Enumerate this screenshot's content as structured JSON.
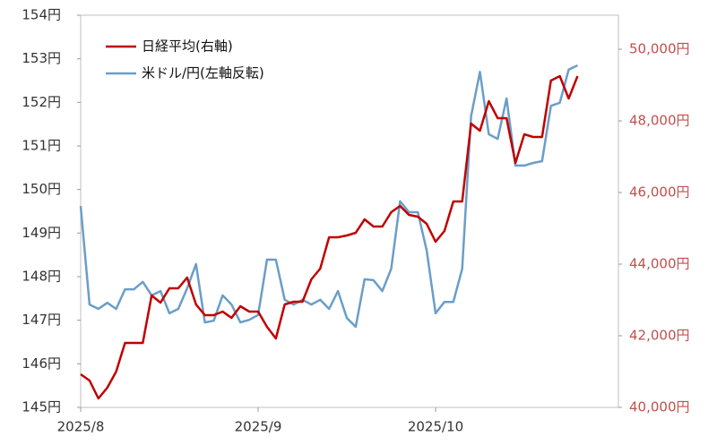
{
  "chart_data": {
    "type": "line",
    "categories": [
      "2025/8",
      null,
      null,
      null,
      null,
      null,
      null,
      null,
      null,
      null,
      null,
      null,
      null,
      null,
      null,
      null,
      null,
      null,
      null,
      null,
      "2025/9",
      null,
      null,
      null,
      null,
      null,
      null,
      null,
      null,
      null,
      null,
      null,
      null,
      null,
      null,
      null,
      null,
      null,
      null,
      null,
      "2025/10",
      null,
      null,
      null,
      null,
      null,
      null,
      null,
      null,
      null,
      null,
      null,
      null,
      null,
      null,
      null,
      null
    ],
    "ylim": [
      145,
      154
    ],
    "yticks": [
      {
        "value": 145,
        "label": "145円"
      },
      {
        "value": 146,
        "label": "146円"
      },
      {
        "value": 147,
        "label": "147円"
      },
      {
        "value": 148,
        "label": "148円"
      },
      {
        "value": 149,
        "label": "149円"
      },
      {
        "value": 150,
        "label": "150円"
      },
      {
        "value": 151,
        "label": "151円"
      },
      {
        "value": 152,
        "label": "152円"
      },
      {
        "value": 153,
        "label": "153円"
      },
      {
        "value": 154,
        "label": "154円"
      }
    ],
    "y2lim": [
      40000,
      50950
    ],
    "y2ticks": [
      {
        "value": 40000,
        "label": "40,000円"
      },
      {
        "value": 42000,
        "label": "42,000円"
      },
      {
        "value": 44000,
        "label": "44,000円"
      },
      {
        "value": 46000,
        "label": "46,000円"
      },
      {
        "value": 48000,
        "label": "48,000円"
      },
      {
        "value": 50000,
        "label": "50,000円"
      }
    ],
    "y2_color": "#c0504d",
    "series": [
      {
        "name": "日経平均(右軸)",
        "color": "#c00000",
        "axis": "y2",
        "values": [
          40925,
          40750,
          40250,
          40550,
          41000,
          41800,
          41800,
          41800,
          43125,
          42925,
          43325,
          43325,
          43625,
          42875,
          42575,
          42575,
          42675,
          42500,
          42825,
          42675,
          42675,
          42250,
          41925,
          42875,
          42950,
          42950,
          43575,
          43875,
          44750,
          44750,
          44800,
          44875,
          45250,
          45050,
          45050,
          45450,
          45625,
          45375,
          45325,
          45125,
          44625,
          44925,
          45750,
          45750,
          47925,
          47725,
          48550,
          48075,
          48075,
          46825,
          47625,
          47550,
          47550,
          49125,
          49250,
          48625,
          49250
        ]
      },
      {
        "name": "米ドル/円(左軸反転)",
        "color": "#6a9ec8",
        "values": [
          149.62,
          147.36,
          147.26,
          147.4,
          147.26,
          147.71,
          147.71,
          147.88,
          147.57,
          147.67,
          147.16,
          147.26,
          147.73,
          148.29,
          146.95,
          146.99,
          147.57,
          147.36,
          146.95,
          147.01,
          147.12,
          148.39,
          148.39,
          147.47,
          147.36,
          147.47,
          147.36,
          147.47,
          147.26,
          147.67,
          147.05,
          146.85,
          147.94,
          147.92,
          147.67,
          148.18,
          149.73,
          149.48,
          149.48,
          148.6,
          147.16,
          147.42,
          147.42,
          148.18,
          151.68,
          152.7,
          151.27,
          151.16,
          152.09,
          150.55,
          150.55,
          150.61,
          150.65,
          151.92,
          151.99,
          152.75,
          152.85
        ]
      }
    ]
  }
}
